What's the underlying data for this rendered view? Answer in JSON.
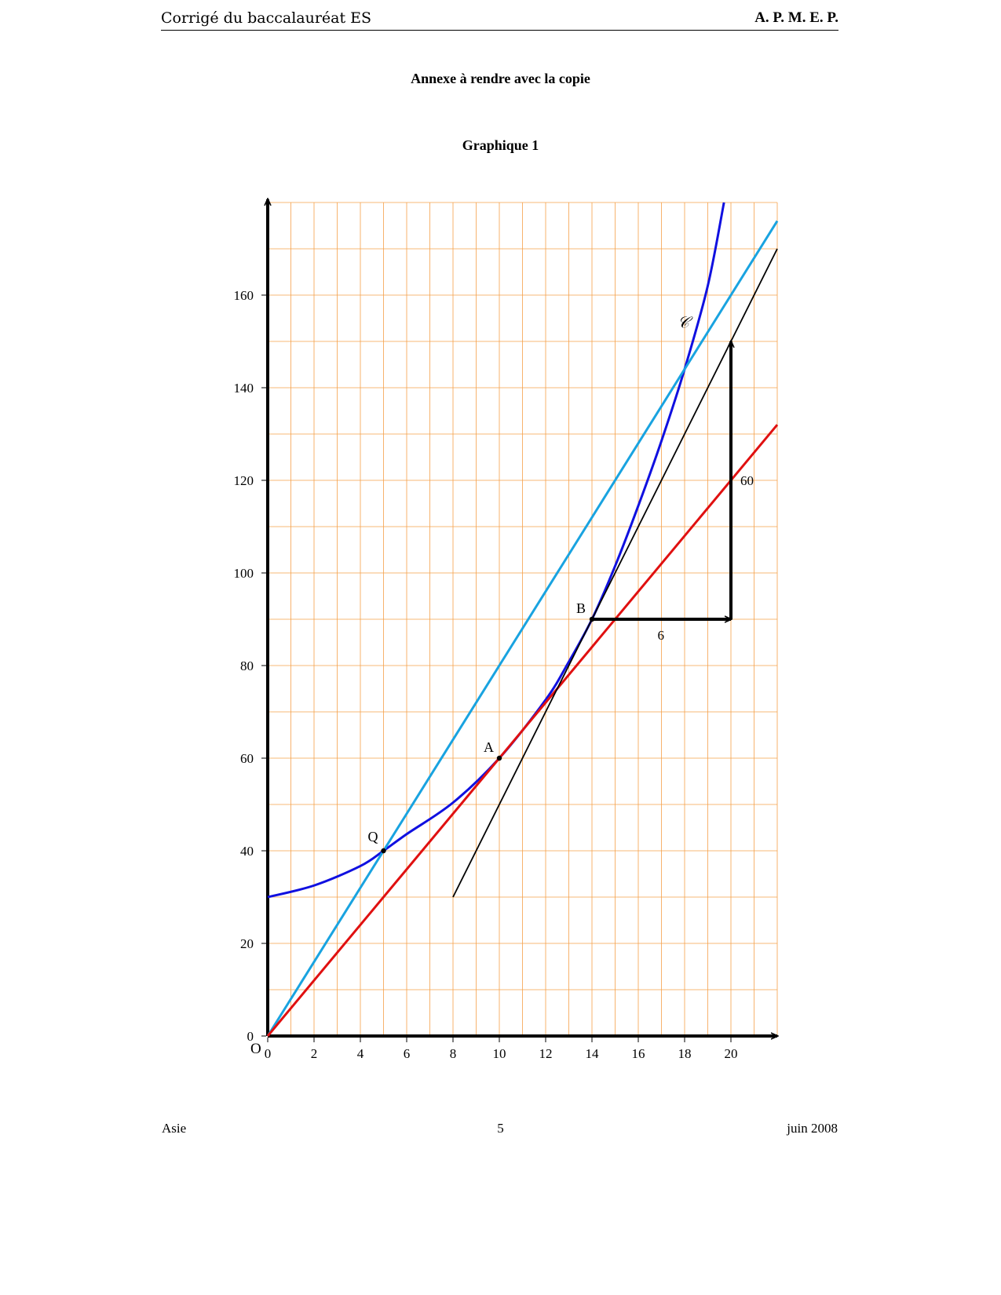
{
  "header": {
    "left": "Corrigé du baccalauréat ES",
    "right": "A. P. M. E. P."
  },
  "title": "Annexe à rendre avec la copie",
  "subtitle": "Graphique 1",
  "footer": {
    "left": "Asie",
    "center": "5",
    "right": "juin 2008"
  },
  "colors": {
    "grid": "#f5a04a",
    "curve": "#1010e0",
    "cyan_line": "#19a3e0",
    "red_line": "#e01010",
    "tangent": "#000000"
  },
  "chart_data": {
    "type": "line",
    "title": "Graphique 1",
    "xlim": [
      0,
      22
    ],
    "ylim": [
      0,
      180
    ],
    "xticks": [
      0,
      2,
      4,
      6,
      8,
      10,
      12,
      14,
      16,
      18,
      20
    ],
    "yticks": [
      0,
      20,
      40,
      60,
      80,
      100,
      120,
      140,
      160
    ],
    "grid": true,
    "origin_label": "O",
    "curve_label": "𝒞",
    "series": [
      {
        "key": "curve",
        "color": "#1010e0",
        "x": [
          0,
          2,
          4,
          5,
          6,
          8,
          10,
          12,
          13,
          14,
          15,
          16,
          17,
          18,
          19,
          19.7
        ],
        "y": [
          30,
          32.5,
          36.7,
          40,
          43.6,
          50.4,
          60,
          72.6,
          80.8,
          90,
          101.5,
          114.5,
          128.5,
          144,
          162,
          180
        ]
      },
      {
        "key": "cyan_line",
        "color": "#19a3e0",
        "x": [
          0,
          22
        ],
        "y": [
          0,
          176
        ]
      },
      {
        "key": "red_line",
        "color": "#e01010",
        "x": [
          0,
          22
        ],
        "y": [
          0,
          132
        ]
      },
      {
        "key": "tangent",
        "color": "#000000",
        "x": [
          8,
          22
        ],
        "y": [
          30,
          170
        ]
      }
    ],
    "points": [
      {
        "name": "Q",
        "x": 5,
        "y": 40
      },
      {
        "name": "A",
        "x": 10,
        "y": 60
      },
      {
        "name": "B",
        "x": 14,
        "y": 90
      }
    ],
    "arrows": [
      {
        "from": [
          14,
          90
        ],
        "to": [
          20,
          90
        ],
        "label": "6"
      },
      {
        "from": [
          20,
          90
        ],
        "to": [
          20,
          150
        ],
        "label": "60"
      }
    ]
  }
}
